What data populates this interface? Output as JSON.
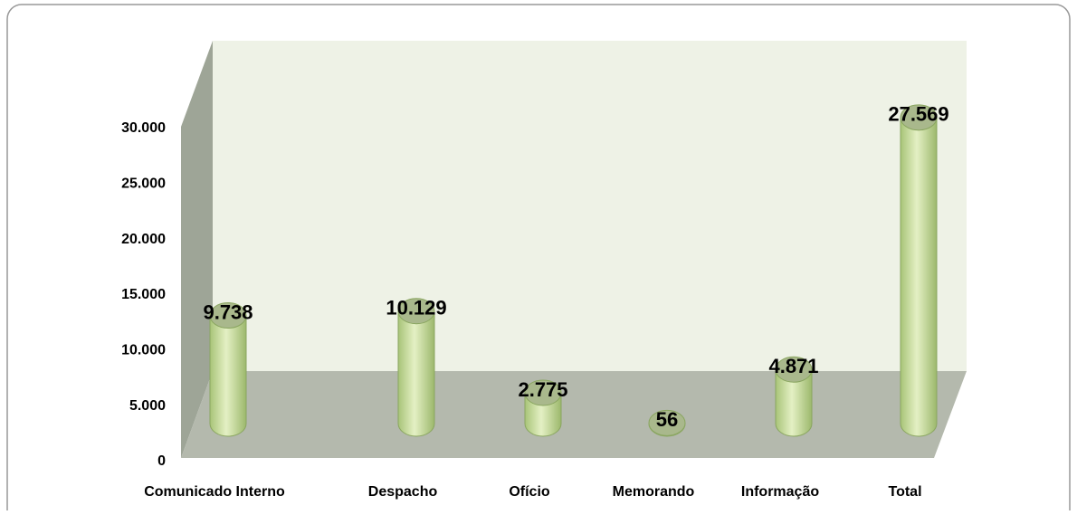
{
  "chart_data": {
    "type": "bar3d",
    "categories": [
      "Comunicado Interno",
      "Despacho",
      "Ofício",
      "Memorando",
      "Informação",
      "Total"
    ],
    "values": [
      9738,
      10129,
      2775,
      56,
      4871,
      27569
    ],
    "value_labels": [
      "9.738",
      "10.129",
      "2.775",
      "56",
      "4.871",
      "27.569"
    ],
    "color": "#c8dc98",
    "ylim": [
      0,
      30000
    ],
    "yticks": [
      {
        "value": 0,
        "label": "0"
      },
      {
        "value": 5000,
        "label": "5.000"
      },
      {
        "value": 10000,
        "label": "10.000"
      },
      {
        "value": 15000,
        "label": "15.000"
      },
      {
        "value": 20000,
        "label": "20.000"
      },
      {
        "value": 25000,
        "label": "25.000"
      },
      {
        "value": 30000,
        "label": "30.000"
      }
    ]
  }
}
